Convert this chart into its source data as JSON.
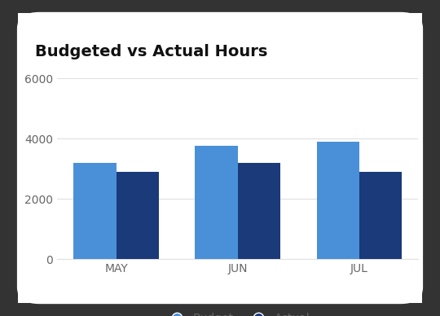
{
  "title": "Budgeted vs Actual Hours",
  "categories": [
    "MAY",
    "JUN",
    "JUL"
  ],
  "budget_values": [
    3200,
    3750,
    3900
  ],
  "actual_values": [
    2900,
    3200,
    2900
  ],
  "budget_color": "#4a90d9",
  "actual_color": "#1a3a7a",
  "ylim": [
    0,
    6500
  ],
  "yticks": [
    0,
    2000,
    4000,
    6000
  ],
  "bar_width": 0.35,
  "legend_labels": [
    "Budget",
    "Actual"
  ],
  "title_fontsize": 14,
  "tick_fontsize": 10,
  "legend_fontsize": 10,
  "background_color": "#ffffff",
  "outer_bg": "#333333",
  "grid_color": "#e0e0e0",
  "tick_color": "#666666"
}
